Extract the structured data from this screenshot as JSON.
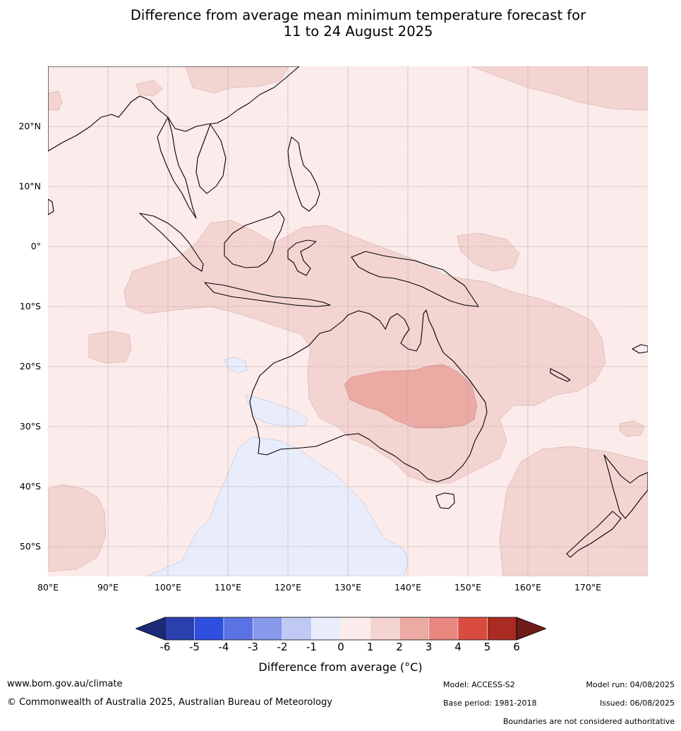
{
  "title": {
    "line1": "Difference from average mean minimum temperature forecast for",
    "line2": "11 to 24 August 2025"
  },
  "map": {
    "lat_labels": [
      "20°N",
      "10°N",
      "0°",
      "10°S",
      "20°S",
      "30°S",
      "40°S",
      "50°S"
    ],
    "lon_labels": [
      "80°E",
      "90°E",
      "100°E",
      "110°E",
      "120°E",
      "130°E",
      "140°E",
      "150°E",
      "160°E",
      "170°E"
    ],
    "extent": {
      "lon": [
        80,
        180
      ],
      "lat": [
        -55,
        30
      ]
    },
    "anomaly_regions": [
      {
        "region": "Central/southern Queensland interior",
        "anomaly_range": "2 to 3",
        "color": "#ebaaa4"
      },
      {
        "region": "Northern and central Australia, Indonesia, Papua New Guinea",
        "anomaly_range": "1 to 2",
        "color": "#f4d4d1"
      },
      {
        "region": "Tasman Sea and New Zealand",
        "anomaly_range": "1 to 2",
        "color": "#f4d4d1"
      },
      {
        "region": "Southern Indian Ocean off Western Australia",
        "anomaly_range": "-1 to 0",
        "color": "#e8ecfb"
      },
      {
        "region": "Remainder of region",
        "anomaly_range": "0 to 1",
        "color": "#fbebea"
      }
    ]
  },
  "colorbar": {
    "ticks": [
      "-6",
      "-5",
      "-4",
      "-3",
      "-2",
      "-1",
      "0",
      "1",
      "2",
      "3",
      "4",
      "5",
      "6"
    ],
    "colors": [
      "#2940ad",
      "#2f4fe0",
      "#5a72e4",
      "#8898ea",
      "#c0c8f4",
      "#e8ecfb",
      "#fbebea",
      "#f4d4d1",
      "#ebaaa4",
      "#e88780",
      "#d94b3f",
      "#a92b22"
    ],
    "under_color": "#1c2a7a",
    "over_color": "#701c1a",
    "label": "Difference from average (°C)"
  },
  "footer": {
    "website": "www.bom.gov.au/climate",
    "copyright": "© Commonwealth of Australia 2025, Australian Bureau of Meteorology",
    "model": "Model: ACCESS-S2",
    "base_period": "Base period: 1981-2018",
    "model_run": "Model run: 04/08/2025",
    "issued": "Issued: 06/08/2025",
    "disclaimer": "Boundaries are not considered authoritative"
  }
}
